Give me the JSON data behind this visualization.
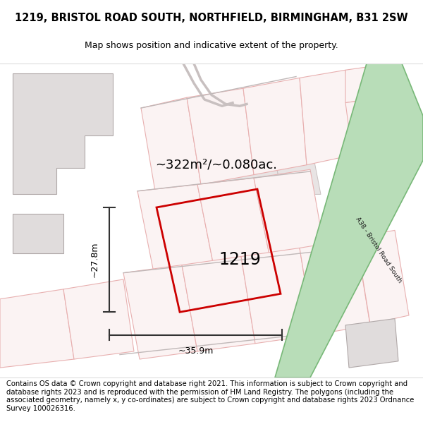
{
  "title": "1219, BRISTOL ROAD SOUTH, NORTHFIELD, BIRMINGHAM, B31 2SW",
  "subtitle": "Map shows position and indicative extent of the property.",
  "footer": "Contains OS data © Crown copyright and database right 2021. This information is subject to Crown copyright and database rights 2023 and is reproduced with the permission of HM Land Registry. The polygons (including the associated geometry, namely x, y co-ordinates) are subject to Crown copyright and database rights 2023 Ordnance Survey 100026316.",
  "area_label": "~322m²/~0.080ac.",
  "width_label": "~35.9m",
  "height_label": "~27.8m",
  "property_number": "1219",
  "map_bg": "#f7f4f4",
  "road_green_fill": "#b8ddb8",
  "road_green_edge": "#78b878",
  "red_line_color": "#cc0000",
  "dim_line_color": "#333333",
  "gray_fill": "#e0dcdc",
  "gray_edge": "#b0a8a8",
  "pink_fill": "#fbf3f3",
  "pink_edge": "#e8b0b0",
  "title_fontsize": 10.5,
  "subtitle_fontsize": 9,
  "footer_fontsize": 7.2
}
